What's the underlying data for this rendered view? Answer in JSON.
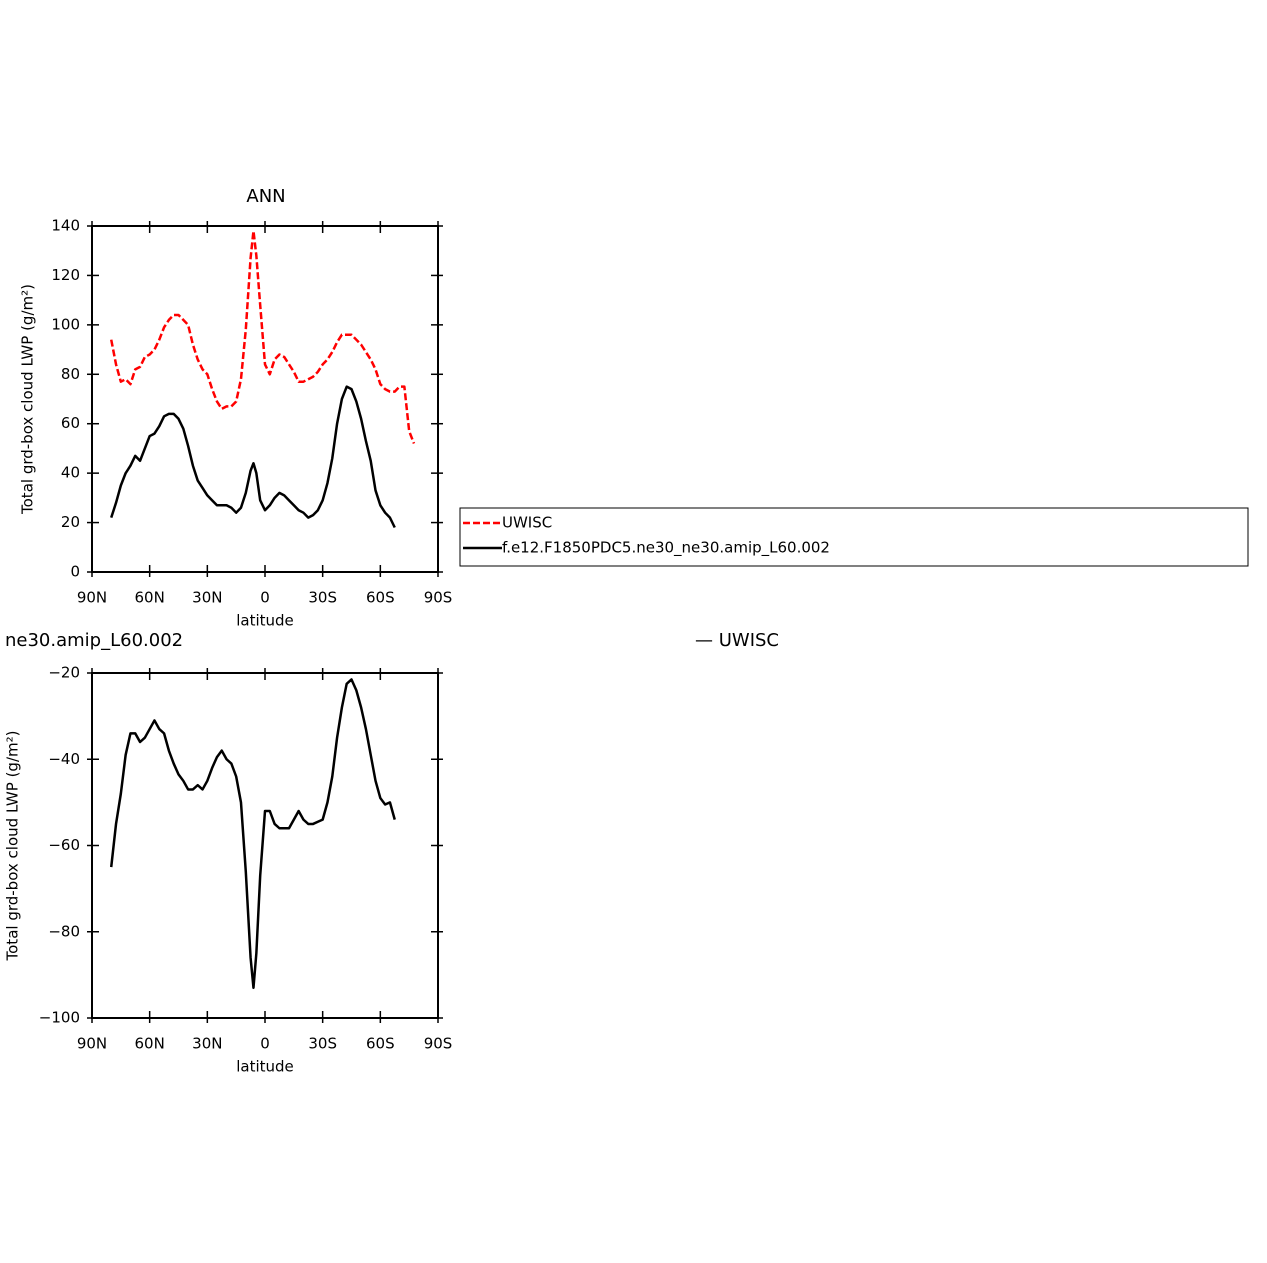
{
  "chart_data": [
    {
      "type": "line",
      "title": "ANN",
      "xlabel": "latitude",
      "ylabel": "Total grd-box cloud LWP (g/m²)",
      "xlim": [
        90,
        -90
      ],
      "xticks": [
        {
          "value": 90,
          "label": "90N"
        },
        {
          "value": 60,
          "label": "60N"
        },
        {
          "value": 30,
          "label": "30N"
        },
        0,
        {
          "value": -30,
          "label": "30S"
        },
        {
          "value": -60,
          "label": "60S"
        },
        {
          "value": -90,
          "label": "90S"
        }
      ],
      "ylim": [
        0,
        140
      ],
      "yticks": [
        0,
        20,
        40,
        60,
        80,
        100,
        120,
        140
      ],
      "legend": "right",
      "x": [
        80,
        77.5,
        75,
        72.5,
        70,
        67.5,
        65,
        62.5,
        60,
        57.5,
        55,
        52.5,
        50,
        47.5,
        45,
        42.5,
        40,
        37.5,
        35,
        32.5,
        30,
        27.5,
        25,
        22.5,
        20,
        17.5,
        15,
        12.5,
        10,
        7.5,
        6,
        4.5,
        2.5,
        0,
        -2.5,
        -5,
        -7.5,
        -10,
        -12.5,
        -15,
        -17.5,
        -20,
        -22.5,
        -25,
        -27.5,
        -30,
        -32.5,
        -35,
        -37.5,
        -40,
        -42.5,
        -45,
        -47.5,
        -50,
        -52.5,
        -55,
        -57.5,
        -60,
        -62.5,
        -65,
        -67.5,
        -70,
        -72.5,
        -75,
        -77.5
      ],
      "series": [
        {
          "name": "UWISC",
          "color": "#ff0000",
          "dashed": true,
          "values": [
            94,
            84,
            77,
            78,
            76,
            82,
            83,
            87,
            88,
            90,
            94,
            99,
            102,
            104,
            104,
            102,
            100,
            92,
            86,
            82,
            80,
            74,
            69,
            66,
            67,
            67,
            69,
            78,
            98,
            127,
            138,
            128,
            108,
            84,
            80,
            86,
            88,
            87,
            84,
            81,
            77,
            77,
            78,
            79,
            81,
            84,
            86,
            89,
            93,
            96,
            96,
            96,
            94,
            92,
            89,
            86,
            82,
            76,
            74,
            73,
            73,
            75,
            75,
            57,
            52
          ]
        },
        {
          "name": "f.e12.F1850PDC5.ne30_ne30.amip_L60.002",
          "color": "#000000",
          "dashed": false,
          "values": [
            22,
            28,
            35,
            40,
            43,
            47,
            45,
            50,
            55,
            56,
            59,
            63,
            64,
            64,
            62,
            58,
            51,
            43,
            37,
            34,
            31,
            29,
            27,
            27,
            27,
            26,
            24,
            26,
            32,
            41,
            44,
            40,
            29,
            25,
            27,
            30,
            32,
            31,
            29,
            27,
            25,
            24,
            22,
            23,
            25,
            29,
            36,
            46,
            60,
            70,
            75,
            74,
            69,
            62,
            53,
            45,
            33,
            27,
            24,
            22,
            18,
            null,
            null,
            null,
            null
          ]
        }
      ]
    },
    {
      "type": "line",
      "title": "ne30.amip_L60.002",
      "right_title": "— UWISC",
      "xlabel": "latitude",
      "ylabel": "Total grd-box cloud LWP (g/m²)",
      "xlim": [
        90,
        -90
      ],
      "xticks": [
        {
          "value": 90,
          "label": "90N"
        },
        {
          "value": 60,
          "label": "60N"
        },
        {
          "value": 30,
          "label": "30N"
        },
        0,
        {
          "value": -30,
          "label": "30S"
        },
        {
          "value": -60,
          "label": "60S"
        },
        {
          "value": -90,
          "label": "90S"
        }
      ],
      "ylim": [
        -100,
        -20
      ],
      "yticks": [
        {
          "value": -100,
          "label": "−100"
        },
        {
          "value": -80,
          "label": "−80"
        },
        {
          "value": -60,
          "label": "−60"
        },
        {
          "value": -40,
          "label": "−40"
        },
        {
          "value": -20,
          "label": "−20"
        }
      ],
      "x": [
        80,
        77.5,
        75,
        72.5,
        70,
        67.5,
        65,
        62.5,
        60,
        57.5,
        55,
        52.5,
        50,
        47.5,
        45,
        42.5,
        40,
        37.5,
        35,
        32.5,
        30,
        27.5,
        25,
        22.5,
        20,
        17.5,
        15,
        12.5,
        10,
        7.5,
        6,
        4.5,
        2.5,
        0,
        -2.5,
        -5,
        -7.5,
        -10,
        -12.5,
        -15,
        -17.5,
        -20,
        -22.5,
        -25,
        -27.5,
        -30,
        -32.5,
        -35,
        -37.5,
        -40,
        -42.5,
        -45,
        -47.5,
        -50,
        -52.5,
        -55,
        -57.5,
        -60,
        -62.5,
        -65,
        -67.5,
        -70,
        -72.5,
        -75,
        -77.5
      ],
      "series": [
        {
          "color": "#000000",
          "dashed": false,
          "values": [
            -65,
            -55,
            -48,
            -39,
            -34,
            -34,
            -36,
            -35,
            -33,
            -31,
            -33,
            -34,
            -38,
            -41,
            -43.5,
            -45,
            -47,
            -47,
            -46,
            -47,
            -45,
            -42,
            -39.5,
            -38,
            -40,
            -41,
            -44,
            -50,
            -66,
            -86,
            -93,
            -85,
            -67,
            -52,
            -52,
            -55,
            -56,
            -56,
            -56,
            -54,
            -52,
            -54,
            -55,
            -55,
            -54.5,
            -54,
            -50,
            -44,
            -35,
            -28,
            -22.5,
            -21.5,
            -24,
            -28,
            -33,
            -39,
            -45,
            -49,
            -50.5,
            -50,
            -54,
            null,
            null,
            null,
            null
          ]
        }
      ]
    }
  ]
}
